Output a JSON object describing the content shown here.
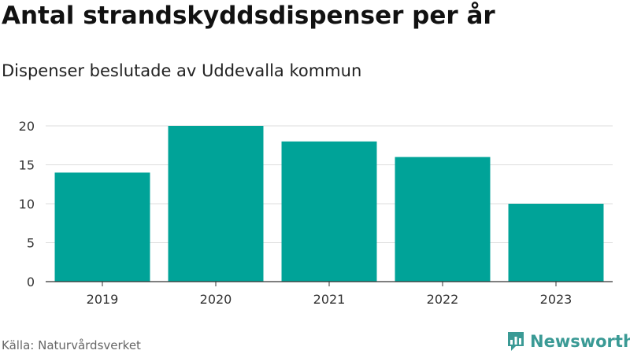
{
  "title": "Antal strandskyddsdispenser per år",
  "subtitle": "Dispenser beslutade av Uddevalla kommun",
  "source": "Källa: Naturvårdsverket",
  "logo": {
    "text": "Newsworthy",
    "icon": "bar-chart-logo-icon"
  },
  "colors": {
    "bar": "#00a398",
    "grid": "#dddddd",
    "axis": "#333333",
    "logo": "#3a9a95"
  },
  "chart_data": {
    "type": "bar",
    "title": "Antal strandskyddsdispenser per år",
    "subtitle": "Dispenser beslutade av Uddevalla kommun",
    "categories": [
      "2019",
      "2020",
      "2021",
      "2022",
      "2023"
    ],
    "values": [
      14,
      20,
      18,
      16,
      10
    ],
    "xlabel": "",
    "ylabel": "",
    "ylim": [
      0,
      20
    ],
    "yticks": [
      "0",
      "5",
      "10",
      "15",
      "20"
    ],
    "grid": true,
    "legend": "none"
  }
}
